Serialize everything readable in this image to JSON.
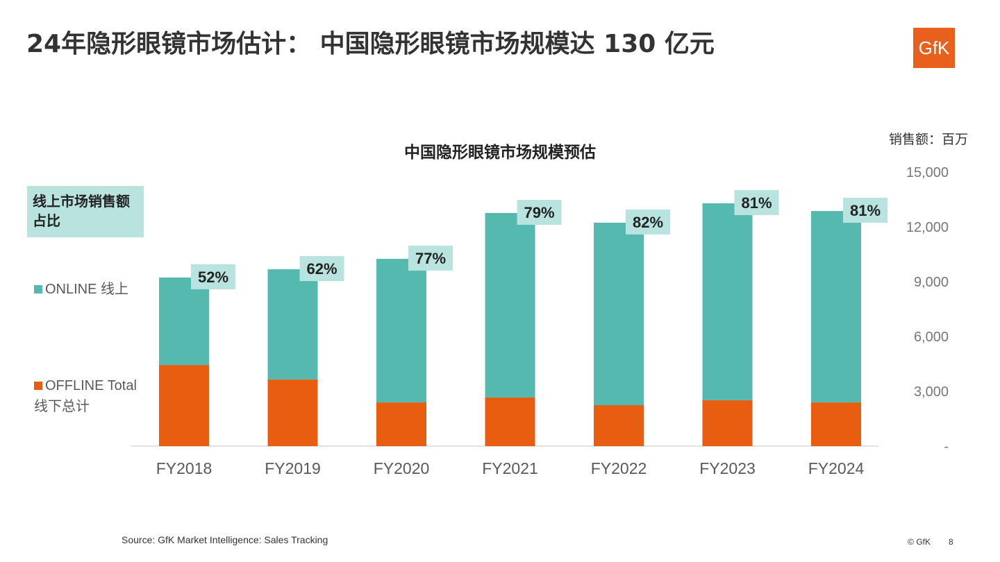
{
  "title": "24年隐形眼镜市场估计： 中国隐形眼镜市场规模达 130 亿元",
  "logo": "GfK",
  "source": "Source: GfK Market Intelligence: Sales Tracking",
  "copyright": "© GfK",
  "page_number": "8",
  "chart_data": {
    "type": "bar",
    "stacked": true,
    "title": "中国隐形眼镜市场规模预估",
    "unit_label": "销售额：百万",
    "share_label": "线上市场销售额占比",
    "categories": [
      "FY2018",
      "FY2019",
      "FY2020",
      "FY2021",
      "FY2022",
      "FY2023",
      "FY2024"
    ],
    "series": [
      {
        "name": "OFFLINE Total 线下总计",
        "color": "#e85d10",
        "values": [
          4440,
          3650,
          2390,
          2660,
          2240,
          2510,
          2390
        ]
      },
      {
        "name": "ONLINE 线上",
        "color": "#55b9b0",
        "values": [
          4790,
          6030,
          7860,
          10100,
          9990,
          10780,
          10480
        ]
      }
    ],
    "online_share_labels": [
      "52%",
      "62%",
      "77%",
      "79%",
      "82%",
      "81%",
      "81%"
    ],
    "yticks": [
      "-",
      "3,000",
      "6,000",
      "9,000",
      "12,000",
      "15,000"
    ],
    "ylim": [
      0,
      15000
    ],
    "axis_position": "right",
    "legend_position": "left",
    "grid": false
  }
}
